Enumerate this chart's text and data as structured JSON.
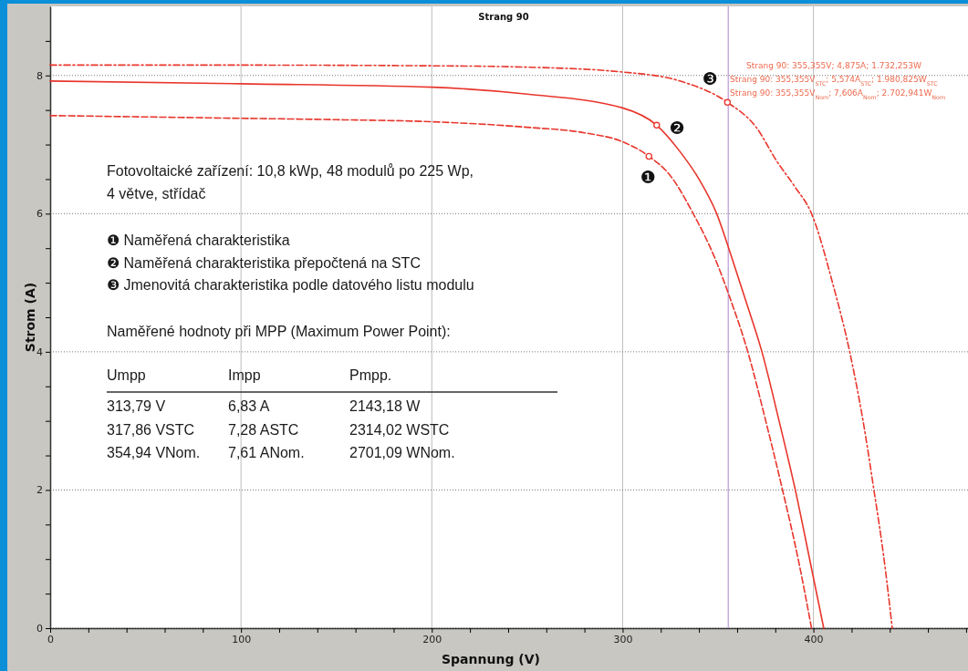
{
  "chart_data": {
    "type": "line",
    "title": "Strang 90",
    "xlabel": "Spannung (V)",
    "ylabel": "Strom (A)",
    "xlim": [
      0,
      481
    ],
    "ylim": [
      0,
      9
    ],
    "xticks": [
      0,
      {
        "value": 20,
        "label": null
      },
      {
        "value": 40,
        "label": null
      },
      {
        "value": 60,
        "label": null
      },
      {
        "value": 80,
        "label": null
      },
      100,
      {
        "value": 120,
        "label": null
      },
      {
        "value": 140,
        "label": null
      },
      {
        "value": 160,
        "label": null
      },
      {
        "value": 180,
        "label": null
      },
      200,
      {
        "value": 220,
        "label": null
      },
      {
        "value": 240,
        "label": null
      },
      {
        "value": 260,
        "label": null
      },
      {
        "value": 280,
        "label": null
      },
      300,
      {
        "value": 320,
        "label": null
      },
      {
        "value": 340,
        "label": null
      },
      {
        "value": 360,
        "label": null
      },
      {
        "value": 380,
        "label": null
      },
      400,
      {
        "value": 420,
        "label": null
      },
      {
        "value": 440,
        "label": null
      },
      {
        "value": 460,
        "label": null
      },
      {
        "value": 480,
        "label": null
      }
    ],
    "yticks": [
      0,
      {
        "value": 0.5,
        "label": null
      },
      {
        "value": 1,
        "label": null
      },
      {
        "value": 1.5,
        "label": null
      },
      2,
      {
        "value": 2.5,
        "label": null
      },
      {
        "value": 3,
        "label": null
      },
      {
        "value": 3.5,
        "label": null
      },
      4,
      {
        "value": 4.5,
        "label": null
      },
      {
        "value": 5,
        "label": null
      },
      {
        "value": 5.5,
        "label": null
      },
      6,
      {
        "value": 6.5,
        "label": null
      },
      {
        "value": 7,
        "label": null
      },
      {
        "value": 7.5,
        "label": null
      },
      8,
      {
        "value": 8.5,
        "label": null
      }
    ],
    "grid": true,
    "series": [
      {
        "color": "#e8362c",
        "line_style": "dashed",
        "x": [
          0,
          50,
          100,
          150,
          200,
          250,
          280,
          300,
          313.79,
          325,
          337,
          348,
          356,
          365.6,
          375,
          383.8,
          392,
          399
        ],
        "values": [
          7.42,
          7.4,
          7.38,
          7.36,
          7.33,
          7.25,
          7.17,
          7.04,
          6.83,
          6.55,
          6.0,
          5.38,
          4.8,
          4.0,
          3.0,
          2.0,
          1.0,
          0
        ]
      },
      {
        "color": "#e8362c",
        "line_style": "solid",
        "x": [
          0,
          100,
          200,
          250,
          300,
          317.86,
          330,
          340,
          349.3,
          357,
          365,
          373,
          382,
          390.5,
          398,
          405.4
        ],
        "values": [
          7.92,
          7.88,
          7.83,
          7.73,
          7.53,
          7.28,
          6.9,
          6.5,
          6.0,
          5.38,
          4.7,
          4.0,
          3.0,
          2.0,
          1.0,
          0
        ]
      },
      {
        "color": "#e8362c",
        "line_style": "dashdot",
        "x": [
          0,
          100,
          200,
          250,
          300,
          330,
          354.94,
          370,
          381,
          390,
          399,
          410,
          419,
          426,
          431.7,
          437,
          441.3
        ],
        "values": [
          8.15,
          8.15,
          8.14,
          8.12,
          8.05,
          7.92,
          7.61,
          7.25,
          6.75,
          6.4,
          6.0,
          5.0,
          4.0,
          3.0,
          2.0,
          1.0,
          0
        ]
      },
      {
        "type": "scatter",
        "color": "#e8362c",
        "marker": "circle",
        "x": [
          313.79,
          317.86,
          354.94
        ],
        "values": [
          6.83,
          7.28,
          7.61
        ]
      }
    ],
    "ref_lines": [
      {
        "axis": "x",
        "value": 355.355,
        "color": "#b99ad6"
      }
    ],
    "annotations": [
      "Fotovoltaické zařízení: 10,8 kWp, 48 modulů po 225 Wp,",
      "4 větve, střídač",
      "❶ Naměřená charakteristika",
      "❷ Naměřená charakteristika přepočtená na STC",
      "❸ Jmenovitá charakteristika podle datového listu modulu",
      "Naměřené hodnoty při MPP (Maximum Power Point):",
      "Umpp",
      "Impp",
      "Pmpp.",
      "313,79 V",
      "6,83 A",
      "2143,18 W",
      "317,86 VSTC",
      "7,28 ASTC",
      "2314,02 WSTC",
      "354,94 VNom.",
      "7,61 ANom.",
      "2701,09 WNom.",
      "Strang 90: 355,355V; 4,875A; 1.732,253W",
      "Strang 90: 355,355V$_{STC}$; 5,574A$_{STC}$; 1.980,825W$_{STC}$",
      "Strang 90: 355,355V$_{Nom}$; 7,606A$_{Nom}$; 2.702,941W$_{Nom}$",
      "❶",
      "❷",
      "❸"
    ]
  }
}
